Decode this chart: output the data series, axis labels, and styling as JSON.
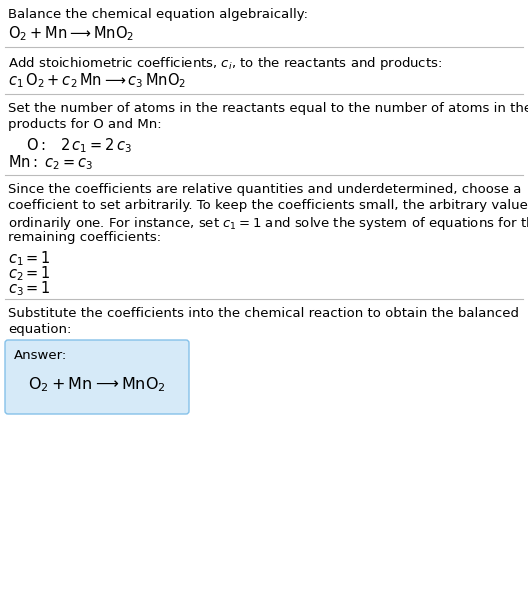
{
  "bg_color": "#ffffff",
  "text_color": "#000000",
  "section1_line1": "Balance the chemical equation algebraically:",
  "section1_eq": "$\\mathrm{O_2 + Mn \\longrightarrow MnO_2}$",
  "section2_line1": "Add stoichiometric coefficients, $c_i$, to the reactants and products:",
  "section2_eq": "$c_1\\, \\mathrm{O_2} + c_2\\, \\mathrm{Mn} \\longrightarrow c_3\\, \\mathrm{MnO_2}$",
  "section3_line1": "Set the number of atoms in the reactants equal to the number of atoms in the",
  "section3_line2": "products for O and Mn:",
  "section3_O": "$\\mathrm{O:}\\;\\;\\; 2\\,c_1 = 2\\,c_3$",
  "section3_Mn": "$\\mathrm{Mn:}\\; c_2 = c_3$",
  "section4_line1": "Since the coefficients are relative quantities and underdetermined, choose a",
  "section4_line2": "coefficient to set arbitrarily. To keep the coefficients small, the arbitrary value is",
  "section4_line3": "ordinarily one. For instance, set $c_1 = 1$ and solve the system of equations for the",
  "section4_line4": "remaining coefficients:",
  "section4_c1": "$c_1 = 1$",
  "section4_c2": "$c_2 = 1$",
  "section4_c3": "$c_3 = 1$",
  "section5_line1": "Substitute the coefficients into the chemical reaction to obtain the balanced",
  "section5_line2": "equation:",
  "answer_label": "Answer:",
  "answer_eq": "$\\mathrm{O_2 + Mn \\longrightarrow MnO_2}$",
  "answer_box_color": "#d6eaf8",
  "answer_box_edge_color": "#85c1e9",
  "divider_color": "#bbbbbb",
  "font_size_body": 9.5,
  "font_size_eq": 10.5,
  "font_size_answer_eq": 11.5
}
